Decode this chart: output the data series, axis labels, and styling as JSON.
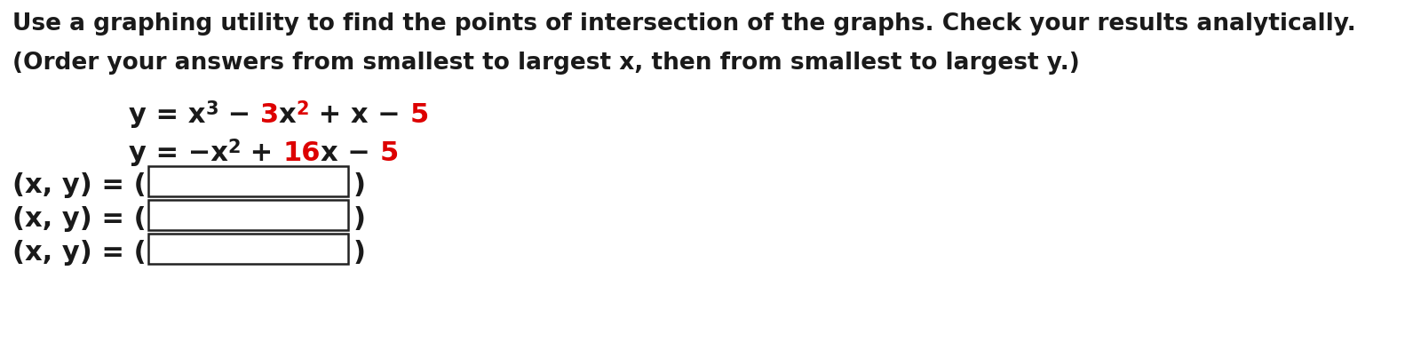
{
  "bg_color": "#ffffff",
  "text_color": "#1a1a1a",
  "red_color": "#dd0000",
  "line1": "Use a graphing utility to find the points of intersection of the graphs. Check your results analytically.",
  "line2": "(Order your answers from smallest to largest x, then from smallest to largest y.)",
  "segments1": [
    [
      "y = x",
      "#1a1a1a",
      false
    ],
    [
      "3",
      "#1a1a1a",
      true
    ],
    [
      " − ",
      "#1a1a1a",
      false
    ],
    [
      "3",
      "#dd0000",
      false
    ],
    [
      "x",
      "#1a1a1a",
      false
    ],
    [
      "2",
      "#dd0000",
      true
    ],
    [
      " + x − ",
      "#1a1a1a",
      false
    ],
    [
      "5",
      "#dd0000",
      false
    ]
  ],
  "segments2": [
    [
      "y = −x",
      "#1a1a1a",
      false
    ],
    [
      "2",
      "#1a1a1a",
      true
    ],
    [
      " + ",
      "#1a1a1a",
      false
    ],
    [
      "16",
      "#dd0000",
      false
    ],
    [
      "x − ",
      "#1a1a1a",
      false
    ],
    [
      "5",
      "#dd0000",
      false
    ]
  ],
  "fig_width": 15.82,
  "fig_height": 4.03,
  "dpi": 100
}
